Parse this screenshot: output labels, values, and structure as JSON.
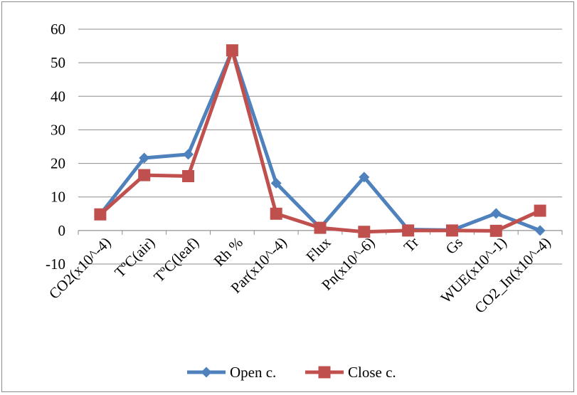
{
  "chart_data": {
    "type": "line",
    "categories": [
      "CO2(x10^-4)",
      "TºC(air)",
      "TºC(leaf)",
      "Rh %",
      "Par(x10^-4)",
      "Flux",
      "Pn(x10^-6)",
      "Tr",
      "Gs",
      "WUE(x10^-1)",
      "CO2_In(x10^-4)"
    ],
    "series": [
      {
        "name": "Open c.",
        "color": "#4f81bd",
        "marker": "diamond",
        "values": [
          4.8,
          21.6,
          22.7,
          53.7,
          14.1,
          0.8,
          15.9,
          0.3,
          0.1,
          5.1,
          0.0
        ]
      },
      {
        "name": "Close c.",
        "color": "#c0504d",
        "marker": "square",
        "values": [
          4.8,
          16.5,
          16.2,
          53.7,
          5.0,
          0.8,
          -0.4,
          0.0,
          0.0,
          -0.1,
          5.9
        ]
      }
    ],
    "ylim": [
      -10,
      60
    ],
    "yticks": [
      -10,
      0,
      10,
      20,
      30,
      40,
      50,
      60
    ],
    "grid": true,
    "legend_position": "bottom"
  }
}
